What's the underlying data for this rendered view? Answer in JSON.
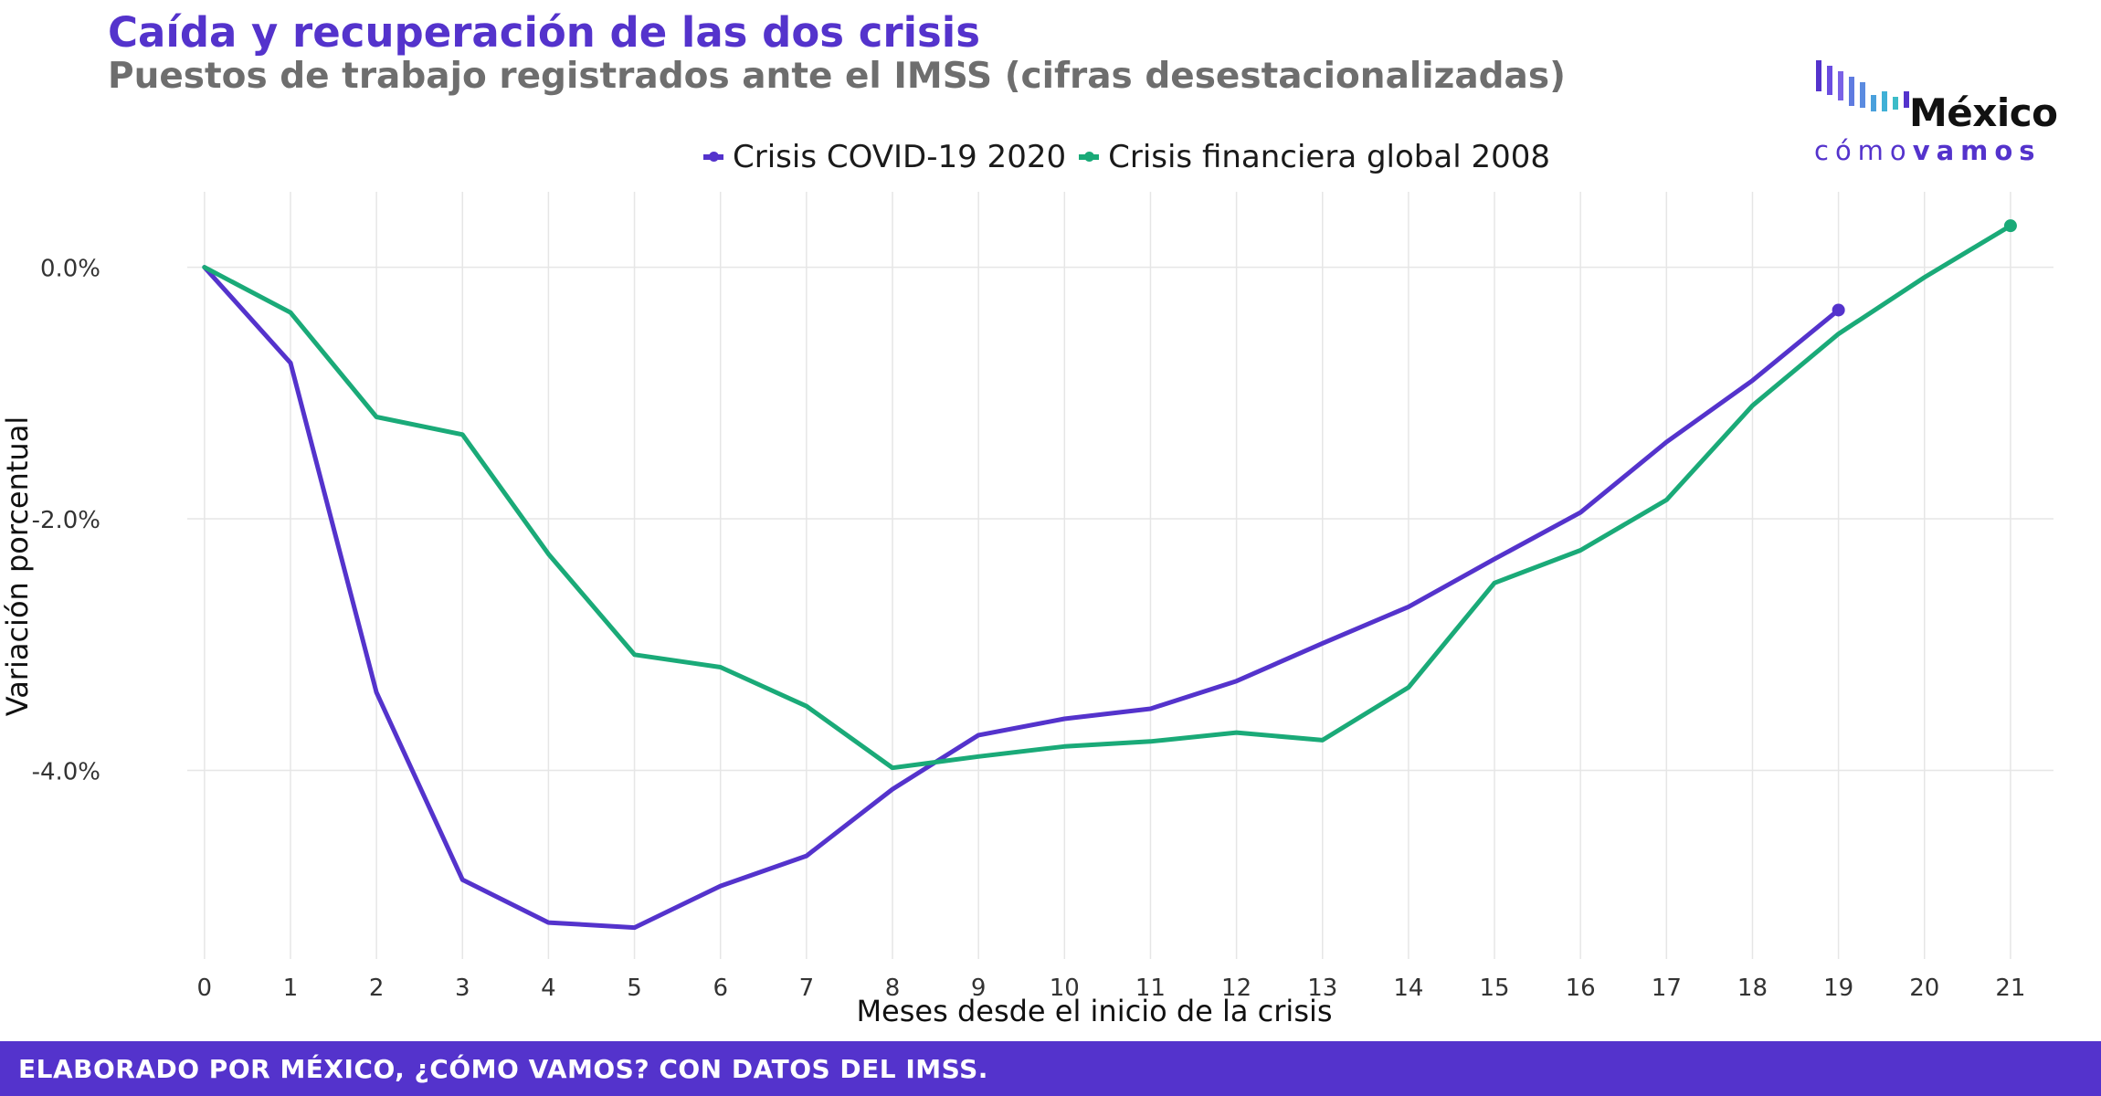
{
  "header": {
    "title": "Caída y recuperación de las dos crisis",
    "subtitle": "Puestos de trabajo registrados ante el IMSS (cifras desestacionalizadas)"
  },
  "logo": {
    "word": "México",
    "sub_light": "cómo",
    "sub_bold": "vamos"
  },
  "footer": {
    "text": "ELABORADO POR MÉXICO, ¿CÓMO VAMOS? CON DATOS DEL IMSS."
  },
  "colors": {
    "covid": "#5433cc",
    "crisis2008": "#1aaa78",
    "accent": "#5433cc"
  },
  "chart_data": {
    "type": "line",
    "xlabel": "Meses desde el inicio de la crisis",
    "ylabel": "Variación porcentual",
    "ylim": [
      -5.5,
      0.6
    ],
    "xlim": [
      -0.2,
      21.5
    ],
    "yticks": [
      0,
      -2,
      -4
    ],
    "ytick_labels": [
      "0.0%",
      "-2.0%",
      "-4.0%"
    ],
    "xticks": [
      0,
      1,
      2,
      3,
      4,
      5,
      6,
      7,
      8,
      9,
      10,
      11,
      12,
      13,
      14,
      15,
      16,
      17,
      18,
      19,
      20,
      21
    ],
    "grid": true,
    "legend_position": "top",
    "series": [
      {
        "name": "Crisis COVID-19 2020",
        "color": "#5433cc",
        "x": [
          0,
          1,
          2,
          3,
          4,
          5,
          6,
          7,
          8,
          9,
          10,
          11,
          12,
          13,
          14,
          15,
          16,
          17,
          18,
          19
        ],
        "values": [
          0,
          -0.76,
          -3.38,
          -4.87,
          -5.21,
          -5.25,
          -4.92,
          -4.68,
          -4.15,
          -3.72,
          -3.59,
          -3.51,
          -3.29,
          -2.99,
          -2.7,
          -2.32,
          -1.95,
          -1.39,
          -0.9,
          -0.34
        ]
      },
      {
        "name": "Crisis financiera global 2008",
        "color": "#1aaa78",
        "x": [
          0,
          1,
          2,
          3,
          4,
          5,
          6,
          7,
          8,
          9,
          10,
          11,
          12,
          13,
          14,
          15,
          16,
          17,
          18,
          19,
          20,
          21
        ],
        "values": [
          0,
          -0.36,
          -1.19,
          -1.33,
          -2.28,
          -3.08,
          -3.18,
          -3.49,
          -3.98,
          -3.89,
          -3.81,
          -3.77,
          -3.7,
          -3.76,
          -3.34,
          -2.51,
          -2.25,
          -1.85,
          -1.1,
          -0.53,
          -0.08,
          0.33
        ]
      }
    ]
  }
}
